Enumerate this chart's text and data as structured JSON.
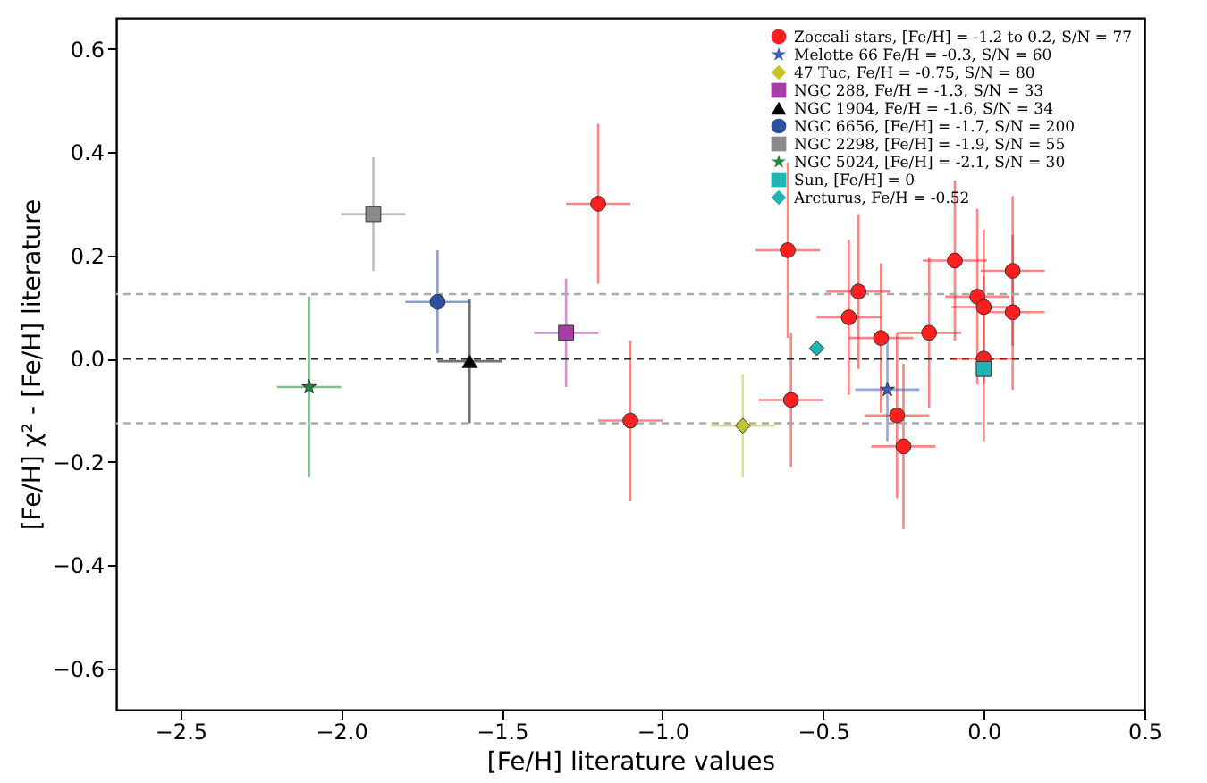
{
  "chart_data": {
    "type": "scatter",
    "xlabel": "[Fe/H] literature values",
    "ylabel": "[Fe/H] χ² - [Fe/H] literature",
    "xlim": [
      -2.7,
      0.5
    ],
    "ylim": [
      -0.68,
      0.66
    ],
    "xticks": [
      {
        "value": -2.5,
        "label": "−2.5"
      },
      {
        "value": -2,
        "label": "−2.0"
      },
      {
        "value": -1.5,
        "label": "−1.5"
      },
      {
        "value": -1,
        "label": "−1.0"
      },
      {
        "value": -0.5,
        "label": "−0.5"
      },
      {
        "value": 0,
        "label": "0.0"
      },
      {
        "value": 0.5,
        "label": "0.5"
      }
    ],
    "yticks": [
      {
        "value": -0.6,
        "label": "−0.6"
      },
      {
        "value": -0.4,
        "label": "−0.4"
      },
      {
        "value": -0.2,
        "label": "−0.2"
      },
      {
        "value": 0,
        "label": "0.0"
      },
      {
        "value": 0.2,
        "label": "0.2"
      },
      {
        "value": 0.4,
        "label": "0.4"
      },
      {
        "value": 0.6,
        "label": "0.6"
      }
    ],
    "grid": false,
    "legend": "top right",
    "ref_lines": [
      {
        "axis": "y",
        "value": 0,
        "color": "#222222",
        "line_style": "dashed"
      },
      {
        "axis": "y",
        "value": 0.125,
        "color": "#aaaaaa",
        "line_style": "dashed"
      },
      {
        "axis": "y",
        "value": -0.125,
        "color": "#aaaaaa",
        "line_style": "dashed"
      }
    ],
    "series": [
      {
        "name": "Zoccali stars, [Fe/H] = -1.2 to 0.2, S/N = 77",
        "color": "#ff1f1f",
        "marker": "circle",
        "x": [
          -1.2,
          -1.1,
          -0.61,
          -0.6,
          -0.42,
          -0.39,
          -0.32,
          -0.27,
          -0.25,
          -0.17,
          -0.09,
          -0.02,
          0.0,
          0.0,
          0.09,
          0.09
        ],
        "values": [
          0.3,
          -0.12,
          0.21,
          -0.08,
          0.08,
          0.13,
          0.04,
          -0.11,
          -0.17,
          0.05,
          0.19,
          0.12,
          0.1,
          0.0,
          0.17,
          0.09
        ],
        "errors": [
          0.155,
          0.155,
          0.17,
          0.13,
          0.15,
          0.15,
          0.145,
          0.16,
          0.16,
          0.145,
          0.155,
          0.17,
          0.15,
          0.16,
          0.145,
          0.15
        ],
        "xerrors": [
          0.1,
          0.1,
          0.1,
          0.1,
          0.1,
          0.1,
          0.1,
          0.1,
          0.1,
          0.1,
          0.1,
          0.1,
          0.1,
          0.1,
          0.1,
          0.1
        ]
      },
      {
        "name": "Melotte 66 Fe/H = -0.3, S/N = 60",
        "color": "#3a5cc4",
        "marker": "star",
        "x": [
          -0.3
        ],
        "values": [
          -0.06
        ],
        "errors": [
          0.1
        ],
        "xerrors": [
          0.1
        ]
      },
      {
        "name": "47 Tuc, Fe/H = -0.75, S/N = 80",
        "color": "#c4c42a",
        "marker": "diamond",
        "x": [
          -0.75
        ],
        "values": [
          -0.13
        ],
        "errors": [
          0.1
        ],
        "xerrors": [
          0.1
        ]
      },
      {
        "name": "NGC 288, Fe/H = -1.3, S/N = 33",
        "color": "#a63ea6",
        "marker": "square",
        "x": [
          -1.3
        ],
        "values": [
          0.05
        ],
        "errors": [
          0.105
        ],
        "xerrors": [
          0.1
        ]
      },
      {
        "name": "NGC 1904, Fe/H = -1.6, S/N = 34",
        "color": "#000000",
        "marker": "triangle",
        "x": [
          -1.6
        ],
        "values": [
          -0.005
        ],
        "errors": [
          0.12
        ],
        "xerrors": [
          0.1
        ]
      },
      {
        "name": "NGC 6656, [Fe/H] = -1.7, S/N = 200",
        "color": "#2f4fa0",
        "marker": "circle",
        "x": [
          -1.7
        ],
        "values": [
          0.11
        ],
        "errors": [
          0.1
        ],
        "xerrors": [
          0.1
        ]
      },
      {
        "name": "NGC 2298, [Fe/H] = -1.9, S/N = 55",
        "color": "#8a8a8a",
        "marker": "square",
        "x": [
          -1.9
        ],
        "values": [
          0.28
        ],
        "errors": [
          0.11
        ],
        "xerrors": [
          0.1
        ]
      },
      {
        "name": "NGC 5024, [Fe/H] = -2.1, S/N = 30",
        "color": "#1f8a3a",
        "marker": "star",
        "x": [
          -2.1
        ],
        "values": [
          -0.055
        ],
        "errors": [
          0.175
        ],
        "xerrors": [
          0.1
        ]
      },
      {
        "name": "Sun, [Fe/H] = 0",
        "color": "#1fb5b5",
        "marker": "square",
        "x": [
          0.0
        ],
        "values": [
          -0.02
        ]
      },
      {
        "name": "Arcturus, Fe/H = -0.52",
        "color": "#1fb5b5",
        "marker": "diamond",
        "x": [
          -0.52
        ],
        "values": [
          0.02
        ]
      }
    ]
  }
}
